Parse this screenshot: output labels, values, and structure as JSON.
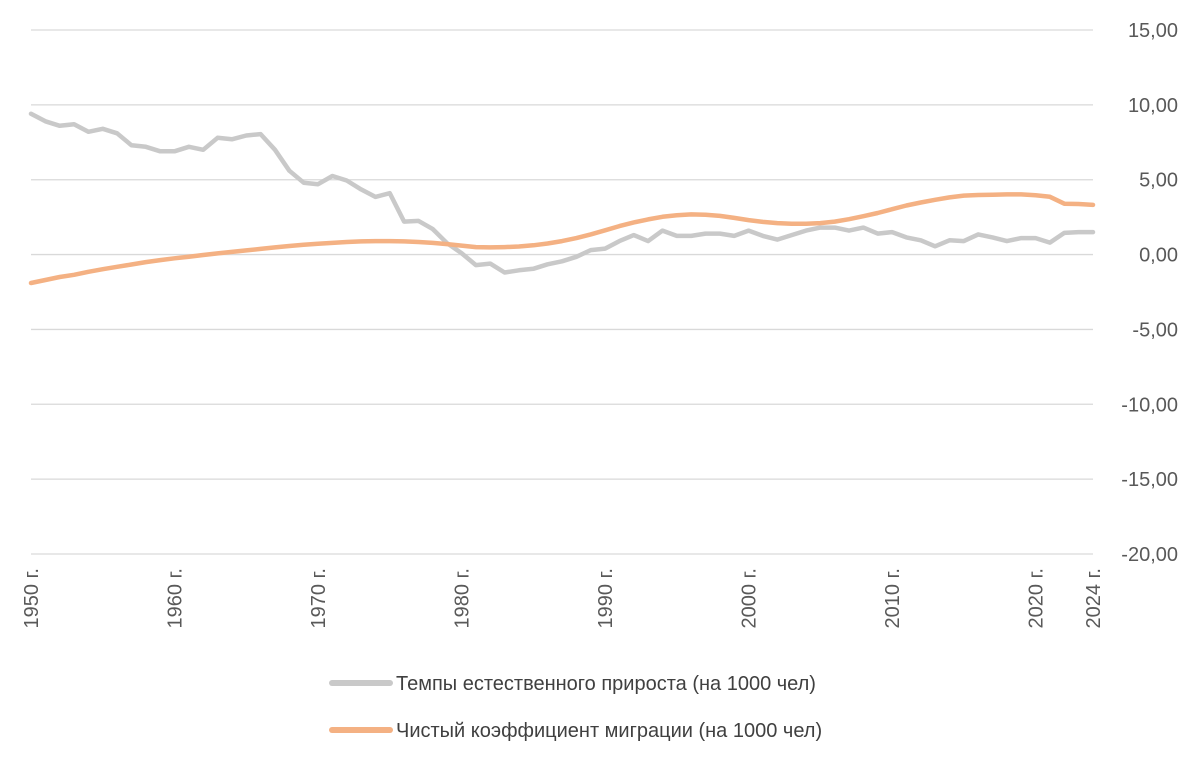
{
  "chart_data": {
    "type": "line",
    "title": "",
    "xlabel": "",
    "ylabel": "",
    "ylim": [
      -20,
      15
    ],
    "y_ticks": [
      15,
      10,
      5,
      0,
      -5,
      -10,
      -15,
      -20
    ],
    "y_tick_labels": [
      "15,00",
      "10,00",
      "5,00",
      "0,00",
      "-5,00",
      "-10,00",
      "-15,00",
      "-20,00"
    ],
    "x_tick_years": [
      1950,
      1960,
      1970,
      1980,
      1990,
      2000,
      2010,
      2020,
      2024
    ],
    "x_tick_labels": [
      "1950 г.",
      "1960 г.",
      "1970 г.",
      "1980 г.",
      "1990 г.",
      "2000 г.",
      "2010 г.",
      "2020 г.",
      "2024 г."
    ],
    "grid": true,
    "legend": "bottom",
    "x": [
      1950,
      1951,
      1952,
      1953,
      1954,
      1955,
      1956,
      1957,
      1958,
      1959,
      1960,
      1961,
      1962,
      1963,
      1964,
      1965,
      1966,
      1967,
      1968,
      1969,
      1970,
      1971,
      1972,
      1973,
      1974,
      1975,
      1976,
      1977,
      1978,
      1979,
      1980,
      1981,
      1982,
      1983,
      1984,
      1985,
      1986,
      1987,
      1988,
      1989,
      1990,
      1991,
      1992,
      1993,
      1994,
      1995,
      1996,
      1997,
      1998,
      1999,
      2000,
      2001,
      2002,
      2003,
      2004,
      2005,
      2006,
      2007,
      2008,
      2009,
      2010,
      2011,
      2012,
      2013,
      2014,
      2015,
      2016,
      2017,
      2018,
      2019,
      2020,
      2021,
      2022,
      2023,
      2024
    ],
    "series": [
      {
        "name": "Темпы естественного прироста (на 1000 чел)",
        "color": "#c9c9c9",
        "values": [
          9.4,
          8.9,
          8.6,
          8.7,
          8.2,
          8.4,
          8.1,
          7.3,
          7.2,
          6.9,
          6.9,
          7.2,
          7.0,
          7.8,
          7.7,
          7.95,
          8.05,
          7.0,
          5.6,
          4.8,
          4.7,
          5.25,
          4.95,
          4.35,
          3.85,
          4.1,
          2.2,
          2.25,
          1.7,
          0.75,
          0.1,
          -0.7,
          -0.6,
          -1.2,
          -1.05,
          -0.95,
          -0.65,
          -0.45,
          -0.15,
          0.3,
          0.4,
          0.9,
          1.3,
          0.9,
          1.6,
          1.25,
          1.25,
          1.4,
          1.4,
          1.25,
          1.6,
          1.25,
          1.0,
          1.3,
          1.6,
          1.8,
          1.8,
          1.6,
          1.8,
          1.4,
          1.5,
          1.15,
          0.95,
          0.55,
          0.95,
          0.9,
          1.35,
          1.15,
          0.9,
          1.1,
          1.1,
          0.8,
          1.45,
          1.5,
          1.5
        ]
      },
      {
        "name": "Чистый коэффициент миграции (на 1000 чел)",
        "color": "#f4b183",
        "values": [
          -1.9,
          -1.7,
          -1.5,
          -1.35,
          -1.15,
          -0.98,
          -0.82,
          -0.66,
          -0.5,
          -0.37,
          -0.25,
          -0.15,
          -0.03,
          0.08,
          0.18,
          0.28,
          0.38,
          0.48,
          0.57,
          0.65,
          0.72,
          0.78,
          0.84,
          0.88,
          0.9,
          0.9,
          0.88,
          0.84,
          0.78,
          0.7,
          0.6,
          0.5,
          0.48,
          0.5,
          0.54,
          0.62,
          0.74,
          0.9,
          1.1,
          1.35,
          1.62,
          1.9,
          2.15,
          2.35,
          2.52,
          2.62,
          2.68,
          2.66,
          2.58,
          2.45,
          2.3,
          2.18,
          2.1,
          2.06,
          2.06,
          2.1,
          2.2,
          2.36,
          2.56,
          2.78,
          3.03,
          3.28,
          3.48,
          3.66,
          3.82,
          3.94,
          3.98,
          4.0,
          4.02,
          4.02,
          3.96,
          3.86,
          3.4,
          3.38,
          3.32
        ]
      }
    ]
  }
}
